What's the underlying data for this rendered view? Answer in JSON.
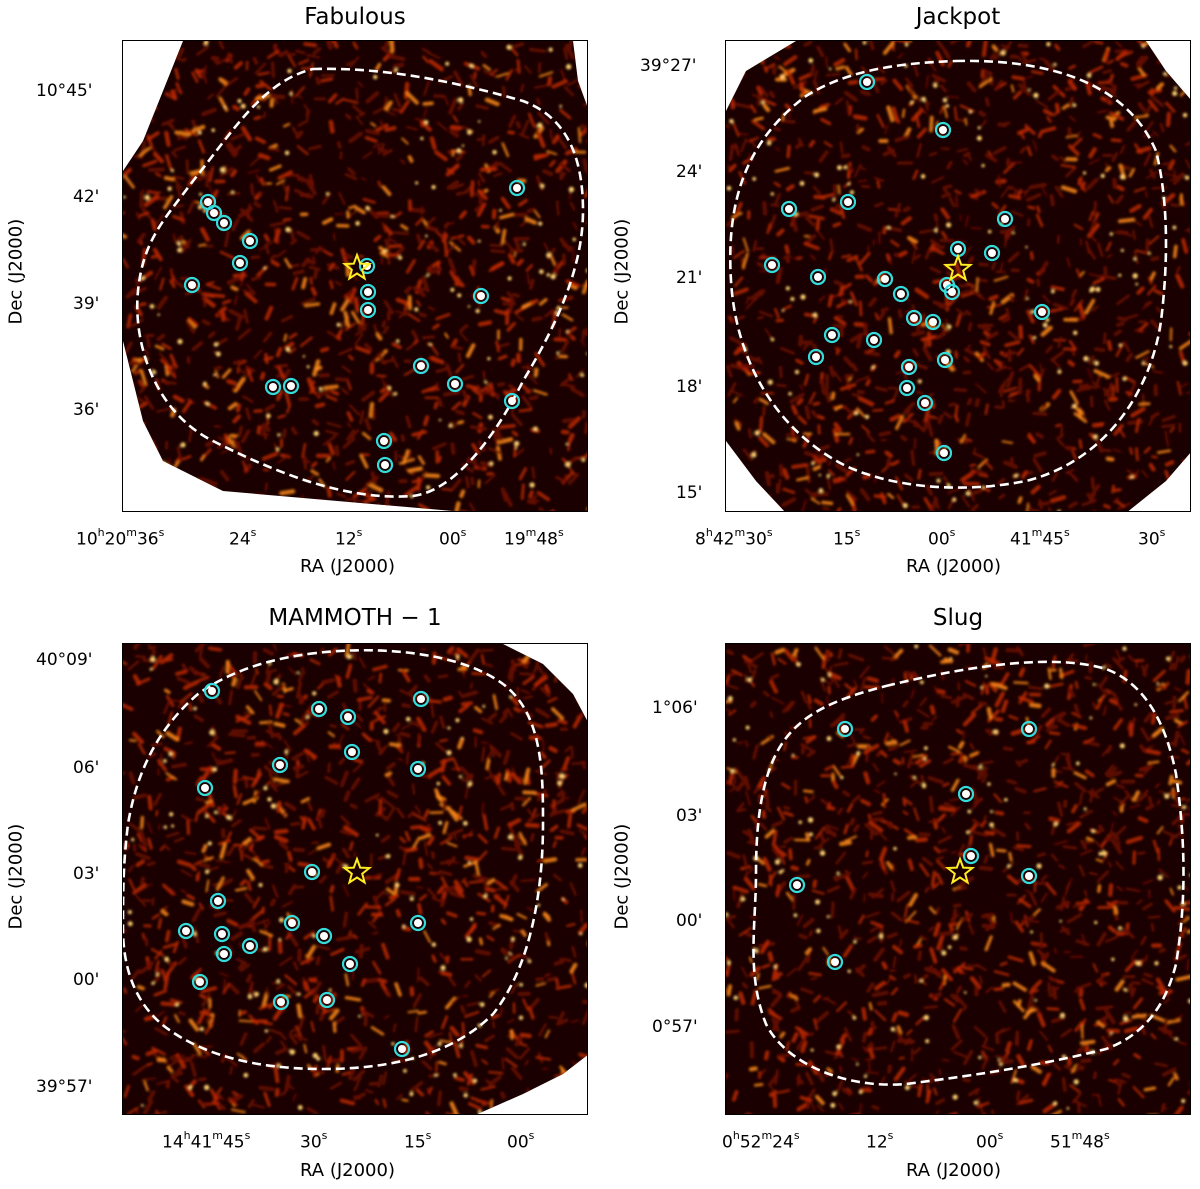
{
  "panels": [
    {
      "title": "Fabulous",
      "xlabel": "RA (J2000)",
      "ylabel": "Dec (J2000)",
      "xticks": [
        {
          "h": "10",
          "hs": "h",
          "m": "20",
          "ms": "m",
          "s": "36",
          "ss": "s"
        },
        {
          "s": "24",
          "ss": "s"
        },
        {
          "s": "12",
          "ss": "s"
        },
        {
          "s": "00",
          "ss": "s"
        },
        {
          "m": "19",
          "ms": "m",
          "s": "48",
          "ss": "s"
        }
      ],
      "yticks": [
        "10°45'",
        "42'",
        "39'",
        "36'"
      ],
      "sources_count": 18,
      "target_marker": "star-icon"
    },
    {
      "title": "Jackpot",
      "xlabel": "RA (J2000)",
      "ylabel": "Dec (J2000)",
      "xticks": [
        {
          "h": "8",
          "hs": "h",
          "m": "42",
          "ms": "m",
          "s": "30",
          "ss": "s"
        },
        {
          "s": "15",
          "ss": "s"
        },
        {
          "s": "00",
          "ss": "s"
        },
        {
          "m": "41",
          "ms": "m",
          "s": "45",
          "ss": "s"
        },
        {
          "s": "30",
          "ss": "s"
        }
      ],
      "yticks": [
        "39°27'",
        "24'",
        "21'",
        "18'",
        "15'"
      ],
      "sources_count": 24,
      "target_marker": "star-icon"
    },
    {
      "title": "MAMMOTH − 1",
      "xlabel": "RA (J2000)",
      "ylabel": "Dec (J2000)",
      "xticks": [
        {
          "h": "14",
          "hs": "h",
          "m": "41",
          "ms": "m",
          "s": "45",
          "ss": "s"
        },
        {
          "s": "30",
          "ss": "s"
        },
        {
          "s": "15",
          "ss": "s"
        },
        {
          "s": "00",
          "ss": "s"
        }
      ],
      "yticks": [
        "40°09'",
        "06'",
        "03'",
        "00'",
        "39°57'"
      ],
      "sources_count": 21,
      "target_marker": "star-icon"
    },
    {
      "title": "Slug",
      "xlabel": "RA (J2000)",
      "ylabel": "Dec (J2000)",
      "xticks": [
        {
          "h": "0",
          "hs": "h",
          "m": "52",
          "ms": "m",
          "s": "24",
          "ss": "s"
        },
        {
          "s": "12",
          "ss": "s"
        },
        {
          "s": "00",
          "ss": "s"
        },
        {
          "m": "51",
          "ms": "m",
          "s": "48",
          "ss": "s"
        }
      ],
      "yticks": [
        "1°06'",
        "03'",
        "00'",
        "0°57'"
      ],
      "sources_count": 8,
      "target_marker": "star-icon"
    }
  ],
  "colors": {
    "background_map": "#1a0000",
    "noise_low": "#6a0c00",
    "noise_mid": "#c02800",
    "noise_high": "#ff8a1a",
    "source_circle": "#33dddd",
    "star": "#ffee22",
    "contour": "#ffffff"
  }
}
